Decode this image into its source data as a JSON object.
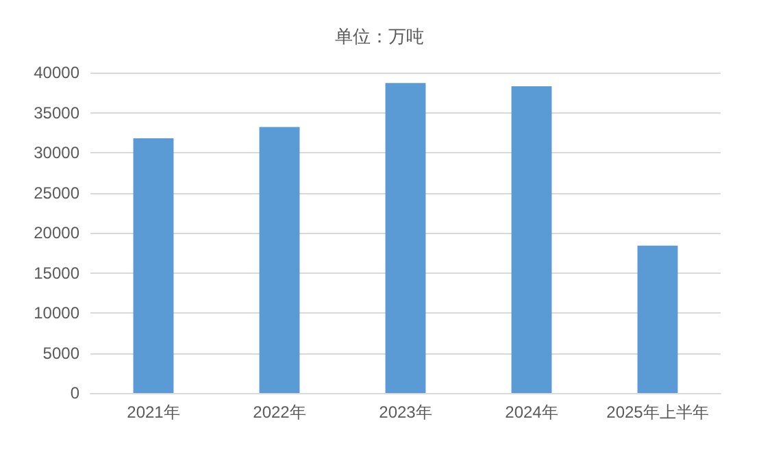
{
  "chart_data": {
    "type": "bar",
    "title": "单位：万吨",
    "categories": [
      "2021年",
      "2022年",
      "2023年",
      "2024年",
      "2025年上半年"
    ],
    "values": [
      31800,
      33200,
      38700,
      38300,
      18400
    ],
    "color": "#5b9bd5",
    "ylim": [
      0,
      40000
    ],
    "yticks": [
      0,
      5000,
      10000,
      15000,
      20000,
      25000,
      30000,
      35000,
      40000
    ],
    "grid": "y"
  }
}
